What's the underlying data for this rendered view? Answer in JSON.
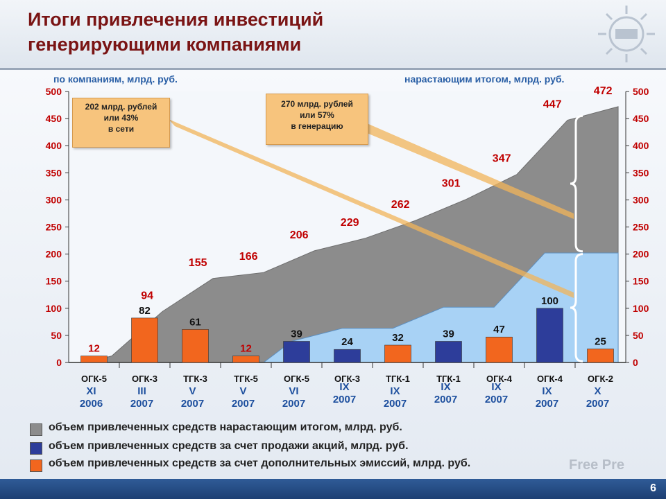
{
  "header": {
    "title_line1": "Итоги привлечения инвестиций",
    "title_line2": "генерирующими компаниями"
  },
  "subtitles": {
    "left": "по компаниям, млрд. руб.",
    "right": "нарастающим итогом, млрд. руб."
  },
  "callouts": [
    {
      "line1": "202 млрд. рублей",
      "line2": "или 43%",
      "line3": "в сети"
    },
    {
      "line1": "270 млрд. рублей",
      "line2": "или 57%",
      "line3": "в генерацию"
    }
  ],
  "legend": [
    {
      "label": "объем привлеченных средств нарастающим итогом, млрд. руб.",
      "color": "#8c8c8c"
    },
    {
      "label": "объем привлеченных средств за счет продажи акций, млрд. руб.",
      "color": "#2d3d9a"
    },
    {
      "label": "объем привлеченных средств за счет дополнительных эмиссий, млрд. руб.",
      "color": "#f2661e"
    }
  ],
  "footer": {
    "page_number": "6"
  },
  "watermark": "Free Pre",
  "chart_data": {
    "type": "bar",
    "categories": [
      "ОГК-5",
      "ОГК-3",
      "ТГК-3",
      "ТГК-5",
      "ОГК-5",
      "ОГК-3",
      "ТГК-1",
      "ТГК-1",
      "ОГК-4",
      "ОГК-4",
      "ОГК-2"
    ],
    "date_labels": [
      [
        "XI",
        "2006"
      ],
      [
        "III",
        "2007"
      ],
      [
        "V",
        "2007"
      ],
      [
        "V",
        "2007"
      ],
      [
        "VI",
        "2007"
      ],
      [
        "IX",
        "2007"
      ],
      [
        "IX",
        "2007"
      ],
      [
        "IX",
        "2007"
      ],
      [
        "IX",
        "2007"
      ],
      [
        "IX",
        "2007"
      ],
      [
        "X",
        "2007"
      ]
    ],
    "bars": [
      {
        "value": 12,
        "kind": "emission"
      },
      {
        "value": 82,
        "kind": "emission"
      },
      {
        "value": 61,
        "kind": "emission"
      },
      {
        "value": 12,
        "kind": "emission"
      },
      {
        "value": 39,
        "kind": "shares"
      },
      {
        "value": 24,
        "kind": "shares"
      },
      {
        "value": 32,
        "kind": "emission"
      },
      {
        "value": 39,
        "kind": "shares"
      },
      {
        "value": 47,
        "kind": "emission"
      },
      {
        "value": 100,
        "kind": "shares"
      },
      {
        "value": 25,
        "kind": "emission"
      }
    ],
    "cumulative": [
      12,
      94,
      155,
      166,
      206,
      229,
      262,
      301,
      347,
      447,
      472
    ],
    "cumulative_labels": [
      "12",
      "94",
      "155",
      "166",
      "206",
      "229",
      "262",
      "301",
      "347",
      "447",
      "472"
    ],
    "bar_labels": [
      "12",
      "82",
      "61",
      "12",
      "39",
      "24",
      "32",
      "39",
      "47",
      "100",
      "25"
    ],
    "network_area": [
      0,
      0,
      0,
      0,
      39,
      63,
      63,
      102,
      102,
      202,
      202
    ],
    "ylim": [
      0,
      500
    ],
    "yticks": [
      0,
      50,
      100,
      150,
      200,
      250,
      300,
      350,
      400,
      450,
      500
    ],
    "colors": {
      "cumulative_area": "#8c8c8c",
      "network_area": "#a8d2f5",
      "shares": "#2d3d9a",
      "emission": "#f2661e",
      "cumulative_label": "#c00000"
    }
  }
}
